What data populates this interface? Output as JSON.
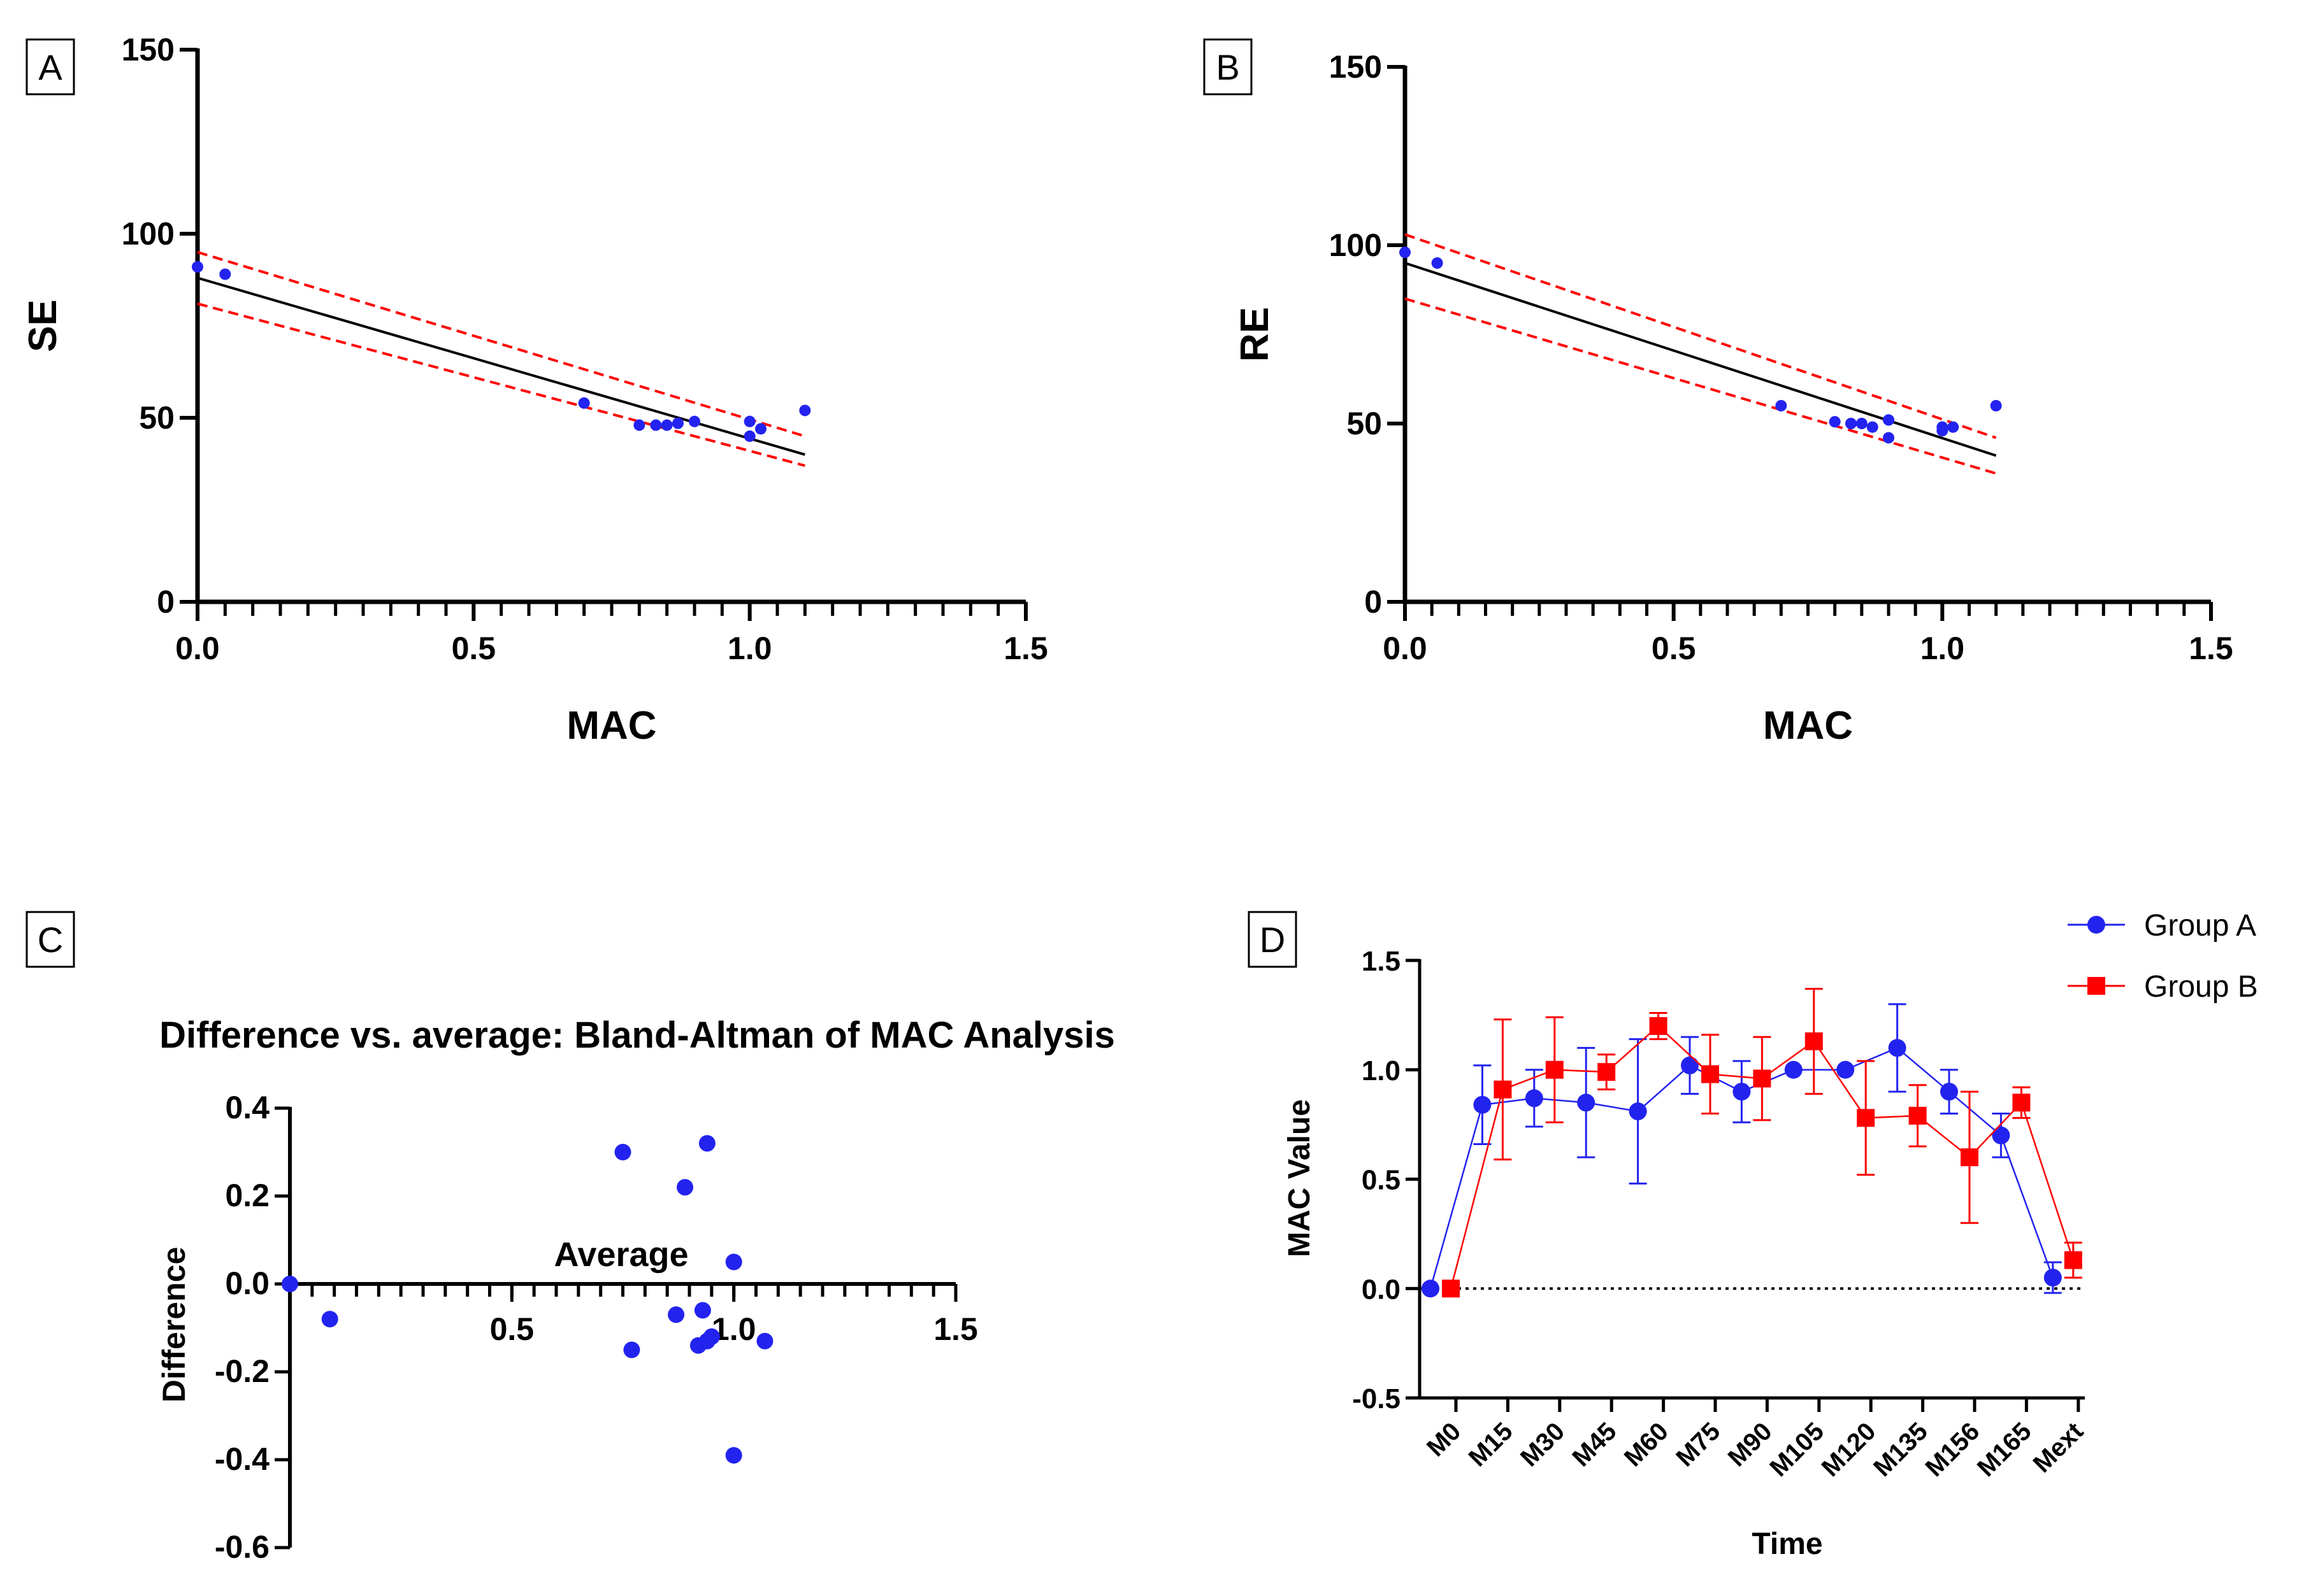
{
  "chart_data": [
    {
      "panel": "A",
      "type": "scatter",
      "xlabel": "MAC",
      "ylabel": "SE",
      "xlim": [
        0,
        1.5
      ],
      "ylim": [
        0,
        150
      ],
      "xticks": [
        "0.0",
        "0.5",
        "1.0",
        "1.5"
      ],
      "yticks": [
        "0",
        "50",
        "100",
        "150"
      ],
      "points": {
        "x": [
          0.0,
          0.05,
          0.7,
          0.8,
          0.83,
          0.85,
          0.87,
          0.9,
          1.0,
          1.0,
          1.02,
          1.1
        ],
        "y": [
          91,
          89,
          54,
          48,
          48,
          48,
          48.5,
          49,
          49,
          45,
          47,
          52
        ]
      },
      "fit_line": {
        "x": [
          0.0,
          1.1
        ],
        "y": [
          88,
          40
        ]
      },
      "confidence_band": {
        "x": [
          0.0,
          1.1
        ],
        "upper": [
          95,
          45
        ],
        "lower": [
          81,
          37
        ]
      },
      "colors": {
        "points": "#2323F0",
        "fit": "#000000",
        "band": "#FF0000"
      }
    },
    {
      "panel": "B",
      "type": "scatter",
      "xlabel": "MAC",
      "ylabel": "RE",
      "xlim": [
        0,
        1.5
      ],
      "ylim": [
        0,
        150
      ],
      "xticks": [
        "0.0",
        "0.5",
        "1.0",
        "1.5"
      ],
      "yticks": [
        "0",
        "50",
        "100",
        "150"
      ],
      "points": {
        "x": [
          0.0,
          0.06,
          0.7,
          0.8,
          0.83,
          0.85,
          0.87,
          0.9,
          0.9,
          1.0,
          1.0,
          1.02,
          1.1
        ],
        "y": [
          98,
          95,
          55,
          50.5,
          50,
          50,
          49,
          51,
          46,
          49,
          48,
          49,
          55
        ]
      },
      "fit_line": {
        "x": [
          0.0,
          1.1
        ],
        "y": [
          95,
          41
        ]
      },
      "confidence_band": {
        "x": [
          0.0,
          1.1
        ],
        "upper": [
          103,
          46
        ],
        "lower": [
          85,
          36
        ]
      },
      "colors": {
        "points": "#2323F0",
        "fit": "#000000",
        "band": "#FF0000"
      }
    },
    {
      "panel": "C",
      "type": "scatter",
      "title": "Difference vs. average: Bland-Altman of MAC Analysis",
      "xlabel": "Average",
      "ylabel": "Difference",
      "xlim": [
        0,
        1.5
      ],
      "ylim": [
        -0.6,
        0.4
      ],
      "xticks": [
        "0.5",
        "1.0",
        "1.5"
      ],
      "yticks": [
        "0.4",
        "0.2",
        "0.0",
        "-0.2",
        "-0.4",
        "-0.6"
      ],
      "points": {
        "x": [
          0.0,
          0.09,
          0.75,
          0.77,
          0.87,
          0.89,
          0.92,
          0.93,
          0.94,
          0.94,
          0.95,
          1.0,
          1.0,
          1.07
        ],
        "y": [
          0.0,
          -0.08,
          0.3,
          -0.15,
          -0.07,
          0.22,
          -0.14,
          -0.06,
          -0.13,
          0.32,
          -0.12,
          0.05,
          -0.39,
          -0.13
        ]
      },
      "colors": {
        "points": "#2323F0"
      }
    },
    {
      "panel": "D",
      "type": "line",
      "xlabel": "Time",
      "ylabel": "MAC Value",
      "ylim": [
        -0.5,
        1.5
      ],
      "yticks": [
        "1.5",
        "1.0",
        "0.5",
        "0.0",
        "-0.5"
      ],
      "categories": [
        "M0",
        "M15",
        "M30",
        "M45",
        "M60",
        "M75",
        "M90",
        "M105",
        "M120",
        "M135",
        "M156",
        "M165",
        "Mext"
      ],
      "reference_line": 0.0,
      "series": [
        {
          "name": "Group A",
          "marker": "circle",
          "color": "#2323F0",
          "values": [
            0.0,
            0.84,
            0.87,
            0.85,
            0.81,
            1.02,
            0.9,
            1.0,
            1.0,
            1.1,
            0.9,
            0.7,
            0.05
          ],
          "errors": [
            0.0,
            0.18,
            0.13,
            0.25,
            0.33,
            0.13,
            0.14,
            0.0,
            0.0,
            0.2,
            0.1,
            0.1,
            0.07
          ]
        },
        {
          "name": "Group B",
          "marker": "square",
          "color": "#FF0000",
          "values": [
            0.0,
            0.91,
            1.0,
            0.99,
            1.2,
            0.98,
            0.96,
            1.13,
            0.78,
            0.79,
            0.6,
            0.85,
            0.13
          ],
          "errors": [
            0.0,
            0.32,
            0.24,
            0.08,
            0.06,
            0.18,
            0.19,
            0.24,
            0.26,
            0.14,
            0.3,
            0.07,
            0.08
          ]
        }
      ]
    }
  ]
}
